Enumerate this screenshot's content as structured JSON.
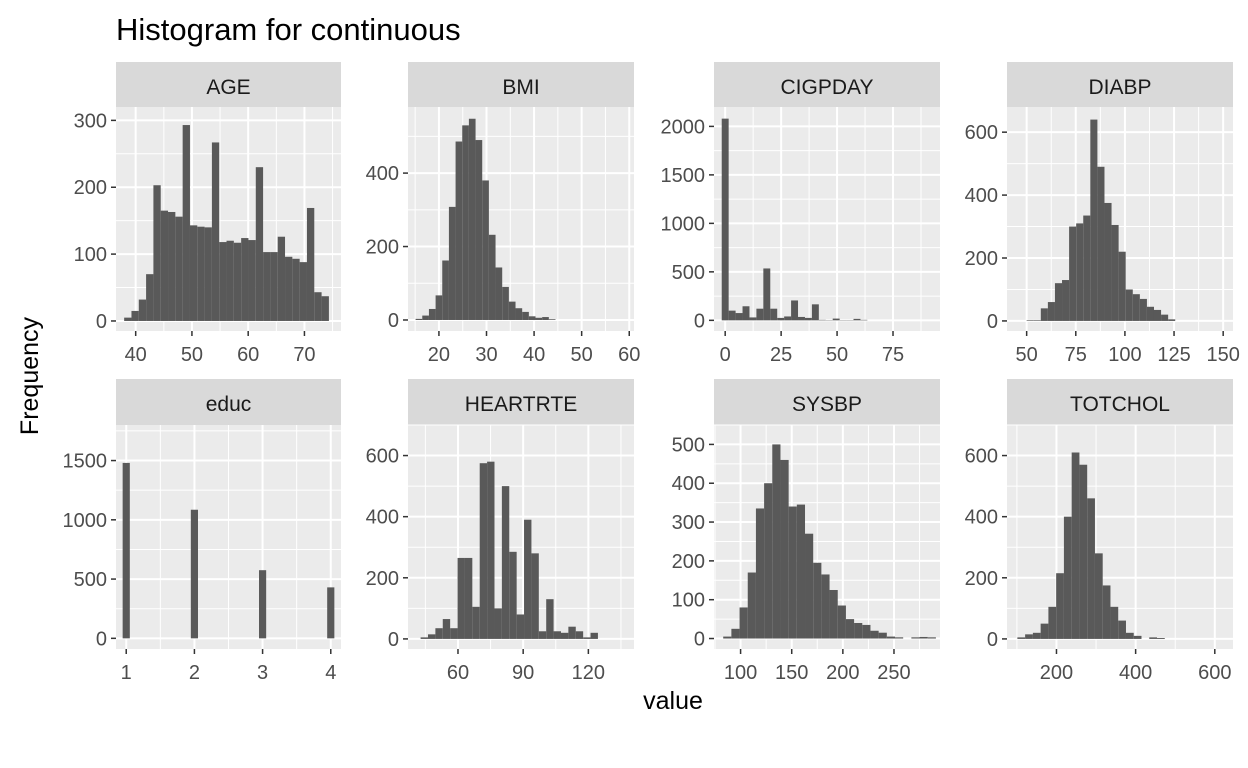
{
  "title": "Histogram for continuous",
  "xlabel": "value",
  "ylabel": "Frequency",
  "colors": {
    "bar": "#595959",
    "panel": "#ebebeb",
    "strip": "#d9d9d9",
    "grid": "#ffffff",
    "text": "#4d4d4d"
  },
  "chart_data": [
    {
      "type": "bar",
      "name": "AGE",
      "xlim": [
        36.5,
        76.5
      ],
      "ylim": [
        -15,
        320
      ],
      "xticks": [
        40,
        50,
        60,
        70
      ],
      "xtick_labels": [
        "40",
        "50",
        "60",
        "70"
      ],
      "yticks": [
        0,
        100,
        200,
        300
      ],
      "ytick_labels": [
        "0",
        "100",
        "200",
        "300"
      ],
      "bin_width": 1.3,
      "x": [
        38.6,
        39.9,
        41.2,
        42.5,
        43.8,
        45.1,
        46.4,
        47.7,
        49.0,
        50.3,
        51.6,
        52.9,
        54.2,
        55.5,
        56.8,
        58.1,
        59.4,
        60.7,
        62.0,
        63.3,
        64.6,
        65.9,
        67.2,
        68.5,
        69.8,
        71.1,
        72.4,
        73.7
      ],
      "values": [
        5,
        15,
        32,
        70,
        203,
        165,
        163,
        156,
        293,
        143,
        141,
        140,
        267,
        118,
        120,
        117,
        124,
        121,
        230,
        103,
        103,
        126,
        96,
        93,
        88,
        169,
        43,
        37
      ]
    },
    {
      "type": "bar",
      "name": "BMI",
      "xlim": [
        13.5,
        61
      ],
      "ylim": [
        -30,
        580
      ],
      "xticks": [
        20,
        30,
        40,
        50,
        60
      ],
      "xtick_labels": [
        "20",
        "30",
        "40",
        "50",
        "60"
      ],
      "yticks": [
        0,
        200,
        400
      ],
      "ytick_labels": [
        "0",
        "200",
        "400"
      ],
      "bin_width": 1.4,
      "x": [
        15.8,
        17.2,
        18.6,
        20.0,
        21.4,
        22.8,
        24.2,
        25.6,
        27.0,
        28.4,
        29.8,
        31.2,
        32.6,
        34.0,
        35.4,
        36.8,
        38.2,
        39.6,
        41.0,
        42.4,
        43.8
      ],
      "values": [
        3,
        12,
        30,
        67,
        162,
        308,
        486,
        530,
        548,
        490,
        380,
        232,
        143,
        90,
        50,
        32,
        22,
        10,
        6,
        8,
        2
      ]
    },
    {
      "type": "bar",
      "name": "CIGPDAY",
      "xlim": [
        -5,
        96
      ],
      "ylim": [
        -110,
        2200
      ],
      "xticks": [
        0,
        25,
        50,
        75
      ],
      "xtick_labels": [
        "0",
        "25",
        "50",
        "75"
      ],
      "yticks": [
        0,
        500,
        1000,
        1500,
        2000
      ],
      "ytick_labels": [
        "0",
        "500",
        "1000",
        "1500",
        "2000"
      ],
      "bin_width": 3.1,
      "x": [
        0,
        3.1,
        6.2,
        9.3,
        12.4,
        15.5,
        18.6,
        21.7,
        24.8,
        27.9,
        31.0,
        34.1,
        37.2,
        40.3,
        43.4,
        46.5,
        49.6,
        52.7,
        55.8,
        58.9,
        62.0
      ],
      "values": [
        2080,
        100,
        75,
        145,
        30,
        120,
        535,
        120,
        25,
        40,
        205,
        35,
        25,
        165,
        5,
        3,
        18,
        3,
        3,
        15,
        5
      ]
    },
    {
      "type": "bar",
      "name": "DIABP",
      "xlim": [
        40,
        155
      ],
      "ylim": [
        -32,
        680
      ],
      "xticks": [
        50,
        75,
        100,
        125,
        150
      ],
      "xtick_labels": [
        "50",
        "75",
        "100",
        "125",
        "150"
      ],
      "yticks": [
        0,
        200,
        400,
        600
      ],
      "ytick_labels": [
        "0",
        "200",
        "400",
        "600"
      ],
      "bin_width": 3.6,
      "x": [
        51.8,
        55.4,
        59.0,
        62.6,
        66.2,
        69.8,
        73.4,
        77.0,
        80.6,
        84.2,
        87.8,
        91.4,
        95.0,
        98.6,
        102.2,
        105.8,
        109.4,
        113.0,
        116.6,
        120.2,
        123.8
      ],
      "values": [
        2,
        2,
        40,
        60,
        120,
        130,
        300,
        310,
        335,
        640,
        490,
        375,
        305,
        220,
        100,
        85,
        70,
        45,
        35,
        20,
        5
      ]
    },
    {
      "type": "bar",
      "name": "educ",
      "xlim": [
        0.85,
        4.15
      ],
      "ylim": [
        -90,
        1800
      ],
      "xticks": [
        1,
        2,
        3,
        4
      ],
      "xtick_labels": [
        "1",
        "2",
        "3",
        "4"
      ],
      "yticks": [
        0,
        500,
        1000,
        1500
      ],
      "ytick_labels": [
        "0",
        "500",
        "1000",
        "1500"
      ],
      "bin_width": 0.105,
      "x": [
        1,
        2,
        3,
        4
      ],
      "values": [
        1480,
        1085,
        575,
        430
      ]
    },
    {
      "type": "bar",
      "name": "HEARTRTE",
      "xlim": [
        37,
        141
      ],
      "ylim": [
        -33,
        700
      ],
      "xticks": [
        60,
        90,
        120
      ],
      "xtick_labels": [
        "60",
        "90",
        "120"
      ],
      "yticks": [
        0,
        200,
        400,
        600
      ],
      "ytick_labels": [
        "0",
        "200",
        "400",
        "600"
      ],
      "bin_width": 3.4,
      "x": [
        44.5,
        47.9,
        51.3,
        54.7,
        58.1,
        61.5,
        64.9,
        68.3,
        71.7,
        75.1,
        78.5,
        81.9,
        85.3,
        88.7,
        92.1,
        95.5,
        98.9,
        102.3,
        105.7,
        109.1,
        112.5,
        115.9,
        119.3,
        122.7
      ],
      "values": [
        5,
        15,
        35,
        65,
        35,
        265,
        265,
        105,
        575,
        580,
        100,
        500,
        285,
        80,
        390,
        280,
        25,
        130,
        25,
        20,
        40,
        25,
        5,
        20
      ]
    },
    {
      "type": "bar",
      "name": "SYSBP",
      "xlim": [
        74,
        295
      ],
      "ylim": [
        -27,
        550
      ],
      "xticks": [
        100,
        150,
        200,
        250
      ],
      "xtick_labels": [
        "100",
        "150",
        "200",
        "250"
      ],
      "yticks": [
        0,
        100,
        200,
        300,
        400,
        500
      ],
      "ytick_labels": [
        "0",
        "100",
        "200",
        "300",
        "400",
        "500"
      ],
      "bin_width": 8,
      "x": [
        87,
        95,
        103,
        111,
        119,
        127,
        135,
        143,
        151,
        159,
        167,
        175,
        183,
        191,
        199,
        207,
        215,
        223,
        231,
        239,
        247,
        255,
        263,
        271,
        279,
        287
      ],
      "values": [
        5,
        25,
        80,
        170,
        335,
        400,
        500,
        460,
        340,
        345,
        270,
        195,
        165,
        125,
        85,
        50,
        40,
        35,
        20,
        15,
        5,
        3,
        0,
        3,
        4,
        3
      ]
    },
    {
      "type": "bar",
      "name": "TOTCHOL",
      "xlim": [
        75,
        646
      ],
      "ylim": [
        -33,
        700
      ],
      "xticks": [
        200,
        400,
        600
      ],
      "xtick_labels": [
        "200",
        "400",
        "600"
      ],
      "yticks": [
        0,
        200,
        400,
        600
      ],
      "ytick_labels": [
        "0",
        "200",
        "400",
        "600"
      ],
      "bin_width": 19.6,
      "x": [
        111,
        130.6,
        150.2,
        169.8,
        189.4,
        209,
        228.6,
        248.2,
        267.8,
        287.4,
        307,
        326.6,
        346.2,
        365.8,
        385.4,
        405,
        444.2,
        463.8
      ],
      "values": [
        5,
        15,
        20,
        50,
        105,
        215,
        400,
        610,
        570,
        460,
        280,
        175,
        105,
        60,
        20,
        10,
        5,
        3
      ]
    }
  ]
}
